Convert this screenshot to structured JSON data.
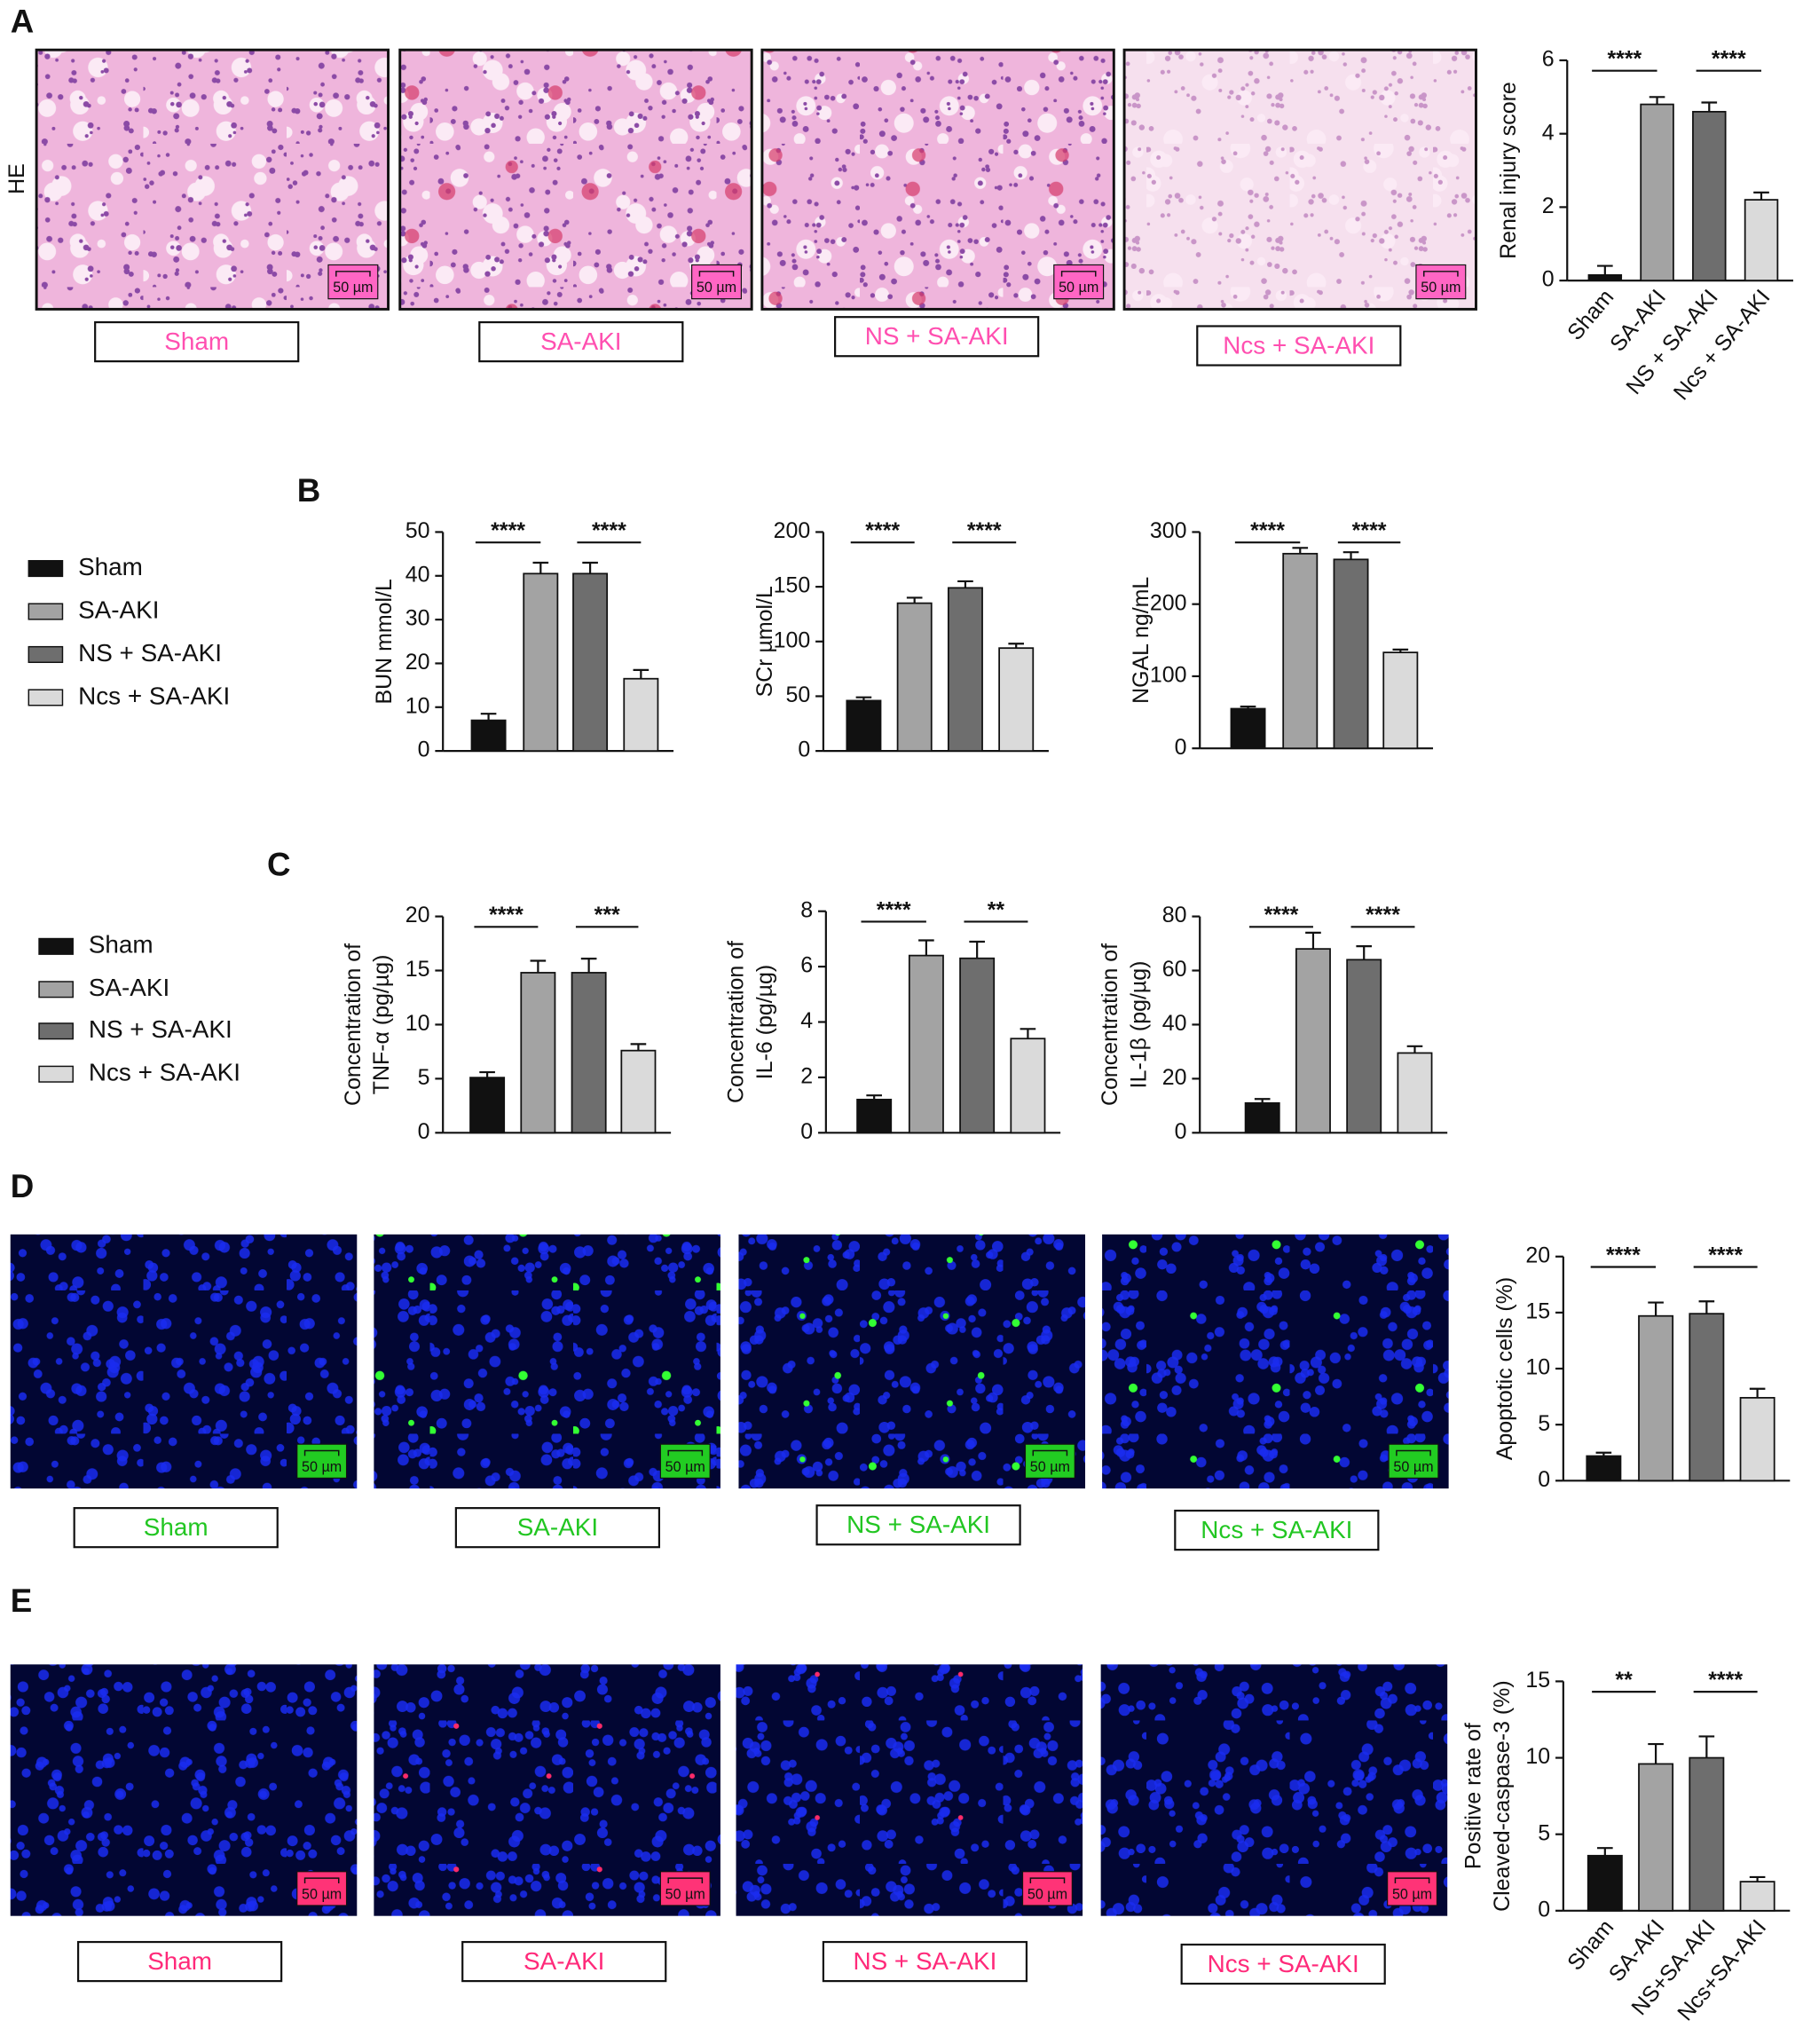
{
  "figure": {
    "panel_letters": [
      "A",
      "B",
      "C",
      "D",
      "E"
    ],
    "stain_label": "HE",
    "scale_bar": "50 µm",
    "image_rows": [
      {
        "labels": [
          "Sham",
          "SA-AKI",
          "NS + SA-AKI",
          "Ncs + SA-AKI"
        ]
      },
      {
        "labels": [
          "Sham",
          "SA-AKI",
          "NS + SA-AKI",
          "Ncs + SA-AKI"
        ]
      },
      {
        "labels": [
          "Sham",
          "SA-AKI",
          "NS + SA-AKI",
          "Ncs + SA-AKI"
        ]
      }
    ],
    "legends": [
      {
        "items": [
          {
            "name": "Sham",
            "color": "#111111"
          },
          {
            "name": "SA-AKI",
            "color": "#a3a3a3"
          },
          {
            "name": "NS + SA-AKI",
            "color": "#6e6e6e"
          },
          {
            "name": "Ncs + SA-AKI",
            "color": "#dadada"
          }
        ]
      },
      {
        "items": [
          {
            "name": "Sham",
            "color": "#111111"
          },
          {
            "name": "SA-AKI",
            "color": "#a3a3a3"
          },
          {
            "name": "NS + SA-AKI",
            "color": "#6e6e6e"
          },
          {
            "name": "Ncs + SA-AKI",
            "color": "#dadada"
          }
        ]
      }
    ]
  },
  "chart_data": [
    {
      "type": "bar",
      "ylabel": [
        "Renal injury score"
      ],
      "categories": [
        "Sham",
        "SA-AKI",
        "NS + SA-AKI",
        "Ncs + SA-AKI"
      ],
      "values": [
        0.15,
        4.8,
        4.6,
        2.2
      ],
      "errors": [
        0.25,
        0.2,
        0.25,
        0.2
      ],
      "colors": [
        "#111111",
        "#a3a3a3",
        "#6e6e6e",
        "#dadada"
      ],
      "ylim": [
        0,
        6
      ],
      "yticks": [
        0,
        2,
        4,
        6
      ],
      "comparisons": [
        {
          "bars": [
            0,
            1
          ],
          "label": "****"
        },
        {
          "bars": [
            2,
            3
          ],
          "label": "****"
        }
      ]
    },
    {
      "type": "bar",
      "ylabel": [
        "BUN mmol/L"
      ],
      "values": [
        7,
        40.5,
        40.5,
        16.5
      ],
      "errors": [
        1.5,
        2.5,
        2.5,
        2
      ],
      "colors": [
        "#111111",
        "#a3a3a3",
        "#6e6e6e",
        "#dadada"
      ],
      "ylim": [
        0,
        50
      ],
      "yticks": [
        0,
        10,
        20,
        30,
        40,
        50
      ],
      "comparisons": [
        {
          "bars": [
            0,
            1
          ],
          "label": "****"
        },
        {
          "bars": [
            2,
            3
          ],
          "label": "****"
        }
      ]
    },
    {
      "type": "bar",
      "ylabel": [
        "SCr µmol/L"
      ],
      "values": [
        46,
        135,
        149,
        94
      ],
      "errors": [
        3,
        5,
        6,
        4
      ],
      "colors": [
        "#111111",
        "#a3a3a3",
        "#6e6e6e",
        "#dadada"
      ],
      "ylim": [
        0,
        200
      ],
      "yticks": [
        0,
        50,
        100,
        150,
        200
      ],
      "comparisons": [
        {
          "bars": [
            0,
            1
          ],
          "label": "****"
        },
        {
          "bars": [
            2,
            3
          ],
          "label": "****"
        }
      ]
    },
    {
      "type": "bar",
      "ylabel": [
        "NGAL ng/mL"
      ],
      "values": [
        55,
        270,
        262,
        133
      ],
      "errors": [
        3,
        8,
        10,
        4
      ],
      "colors": [
        "#111111",
        "#a3a3a3",
        "#6e6e6e",
        "#dadada"
      ],
      "ylim": [
        0,
        300
      ],
      "yticks": [
        0,
        100,
        200,
        300
      ],
      "comparisons": [
        {
          "bars": [
            0,
            1
          ],
          "label": "****"
        },
        {
          "bars": [
            2,
            3
          ],
          "label": "****"
        }
      ]
    },
    {
      "type": "bar",
      "ylabel": [
        "Concentration of",
        "TNF-α (pg/µg)"
      ],
      "values": [
        5.1,
        14.8,
        14.8,
        7.6
      ],
      "errors": [
        0.5,
        1.1,
        1.3,
        0.6
      ],
      "colors": [
        "#111111",
        "#a3a3a3",
        "#6e6e6e",
        "#dadada"
      ],
      "ylim": [
        0,
        20
      ],
      "yticks": [
        0,
        5,
        10,
        15,
        20
      ],
      "comparisons": [
        {
          "bars": [
            0,
            1
          ],
          "label": "****"
        },
        {
          "bars": [
            2,
            3
          ],
          "label": "***"
        }
      ]
    },
    {
      "type": "bar",
      "ylabel": [
        "Concentration of",
        "IL-6 (pg/µg)"
      ],
      "values": [
        1.2,
        6.4,
        6.3,
        3.4
      ],
      "errors": [
        0.15,
        0.55,
        0.6,
        0.35
      ],
      "colors": [
        "#111111",
        "#a3a3a3",
        "#6e6e6e",
        "#dadada"
      ],
      "ylim": [
        0,
        8
      ],
      "yticks": [
        0,
        2,
        4,
        6,
        8
      ],
      "comparisons": [
        {
          "bars": [
            0,
            1
          ],
          "label": "****"
        },
        {
          "bars": [
            2,
            3
          ],
          "label": "**"
        }
      ]
    },
    {
      "type": "bar",
      "ylabel": [
        "Concentration of",
        "IL-1β (pg/µg)"
      ],
      "values": [
        11,
        68,
        64,
        29.5
      ],
      "errors": [
        1.5,
        6,
        5,
        2.5
      ],
      "colors": [
        "#111111",
        "#a3a3a3",
        "#6e6e6e",
        "#dadada"
      ],
      "ylim": [
        0,
        80
      ],
      "yticks": [
        0,
        20,
        40,
        60,
        80
      ],
      "comparisons": [
        {
          "bars": [
            0,
            1
          ],
          "label": "****"
        },
        {
          "bars": [
            2,
            3
          ],
          "label": "****"
        }
      ]
    },
    {
      "type": "bar",
      "ylabel": [
        "Apoptotic cells (%)"
      ],
      "values": [
        2.2,
        14.7,
        14.9,
        7.4
      ],
      "errors": [
        0.3,
        1.2,
        1.1,
        0.8
      ],
      "colors": [
        "#111111",
        "#a3a3a3",
        "#6e6e6e",
        "#dadada"
      ],
      "ylim": [
        0,
        20
      ],
      "yticks": [
        0,
        5,
        10,
        15,
        20
      ],
      "comparisons": [
        {
          "bars": [
            0,
            1
          ],
          "label": "****"
        },
        {
          "bars": [
            2,
            3
          ],
          "label": "****"
        }
      ]
    },
    {
      "type": "bar",
      "ylabel": [
        "Positive rate of",
        "Cleaved-caspase-3 (%)"
      ],
      "categories": [
        "Sham",
        "SA-AKI",
        "NS+SA-AKI",
        "Ncs+SA-AKI"
      ],
      "values": [
        3.6,
        9.6,
        10,
        1.9
      ],
      "errors": [
        0.5,
        1.3,
        1.4,
        0.3
      ],
      "colors": [
        "#111111",
        "#a3a3a3",
        "#6e6e6e",
        "#dadada"
      ],
      "ylim": [
        0,
        15
      ],
      "yticks": [
        0,
        5,
        10,
        15
      ],
      "comparisons": [
        {
          "bars": [
            0,
            1
          ],
          "label": "**"
        },
        {
          "bars": [
            2,
            3
          ],
          "label": "****"
        }
      ]
    }
  ]
}
